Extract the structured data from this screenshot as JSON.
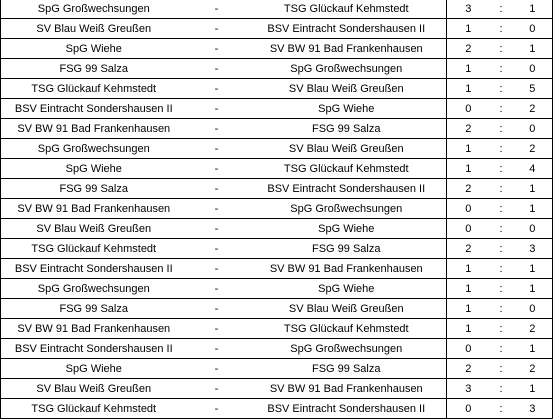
{
  "separator_dash": "-",
  "separator_colon": ":",
  "matches": [
    {
      "home": "SpG Großwechsungen",
      "away": "TSG Glückauf Kehmstedt",
      "goals_home": "3",
      "goals_away": "1"
    },
    {
      "home": "SV Blau Weiß Greußen",
      "away": "BSV Eintracht Sondershausen II",
      "goals_home": "1",
      "goals_away": "0"
    },
    {
      "home": "SpG Wiehe",
      "away": "SV BW 91 Bad Frankenhausen",
      "goals_home": "2",
      "goals_away": "1"
    },
    {
      "home": "FSG 99 Salza",
      "away": "SpG Großwechsungen",
      "goals_home": "1",
      "goals_away": "0"
    },
    {
      "home": "TSG Glückauf Kehmstedt",
      "away": "SV Blau Weiß Greußen",
      "goals_home": "1",
      "goals_away": "5"
    },
    {
      "home": "BSV Eintracht Sondershausen II",
      "away": "SpG Wiehe",
      "goals_home": "0",
      "goals_away": "2"
    },
    {
      "home": "SV BW 91 Bad Frankenhausen",
      "away": "FSG 99 Salza",
      "goals_home": "2",
      "goals_away": "0"
    },
    {
      "home": "SpG Großwechsungen",
      "away": "SV Blau Weiß Greußen",
      "goals_home": "1",
      "goals_away": "2"
    },
    {
      "home": "SpG Wiehe",
      "away": "TSG Glückauf Kehmstedt",
      "goals_home": "1",
      "goals_away": "4"
    },
    {
      "home": "FSG 99 Salza",
      "away": "BSV Eintracht Sondershausen II",
      "goals_home": "2",
      "goals_away": "1"
    },
    {
      "home": "SV BW 91 Bad Frankenhausen",
      "away": "SpG Großwechsungen",
      "goals_home": "0",
      "goals_away": "1"
    },
    {
      "home": "SV Blau Weiß Greußen",
      "away": "SpG Wiehe",
      "goals_home": "0",
      "goals_away": "0"
    },
    {
      "home": "TSG Glückauf Kehmstedt",
      "away": "FSG 99 Salza",
      "goals_home": "2",
      "goals_away": "3"
    },
    {
      "home": "BSV Eintracht Sondershausen II",
      "away": "SV BW 91 Bad Frankenhausen",
      "goals_home": "1",
      "goals_away": "1"
    },
    {
      "home": "SpG Großwechsungen",
      "away": "SpG Wiehe",
      "goals_home": "1",
      "goals_away": "1"
    },
    {
      "home": "FSG 99 Salza",
      "away": "SV Blau Weiß Greußen",
      "goals_home": "1",
      "goals_away": "0"
    },
    {
      "home": "SV BW 91 Bad Frankenhausen",
      "away": "TSG Glückauf Kehmstedt",
      "goals_home": "1",
      "goals_away": "2"
    },
    {
      "home": "BSV Eintracht Sondershausen II",
      "away": "SpG Großwechsungen",
      "goals_home": "0",
      "goals_away": "1"
    },
    {
      "home": "SpG Wiehe",
      "away": "FSG 99 Salza",
      "goals_home": "2",
      "goals_away": "2"
    },
    {
      "home": "SV Blau Weiß Greußen",
      "away": "SV BW 91 Bad Frankenhausen",
      "goals_home": "3",
      "goals_away": "1"
    },
    {
      "home": "TSG Glückauf Kehmstedt",
      "away": "BSV Eintracht Sondershausen II",
      "goals_home": "0",
      "goals_away": "3"
    }
  ]
}
